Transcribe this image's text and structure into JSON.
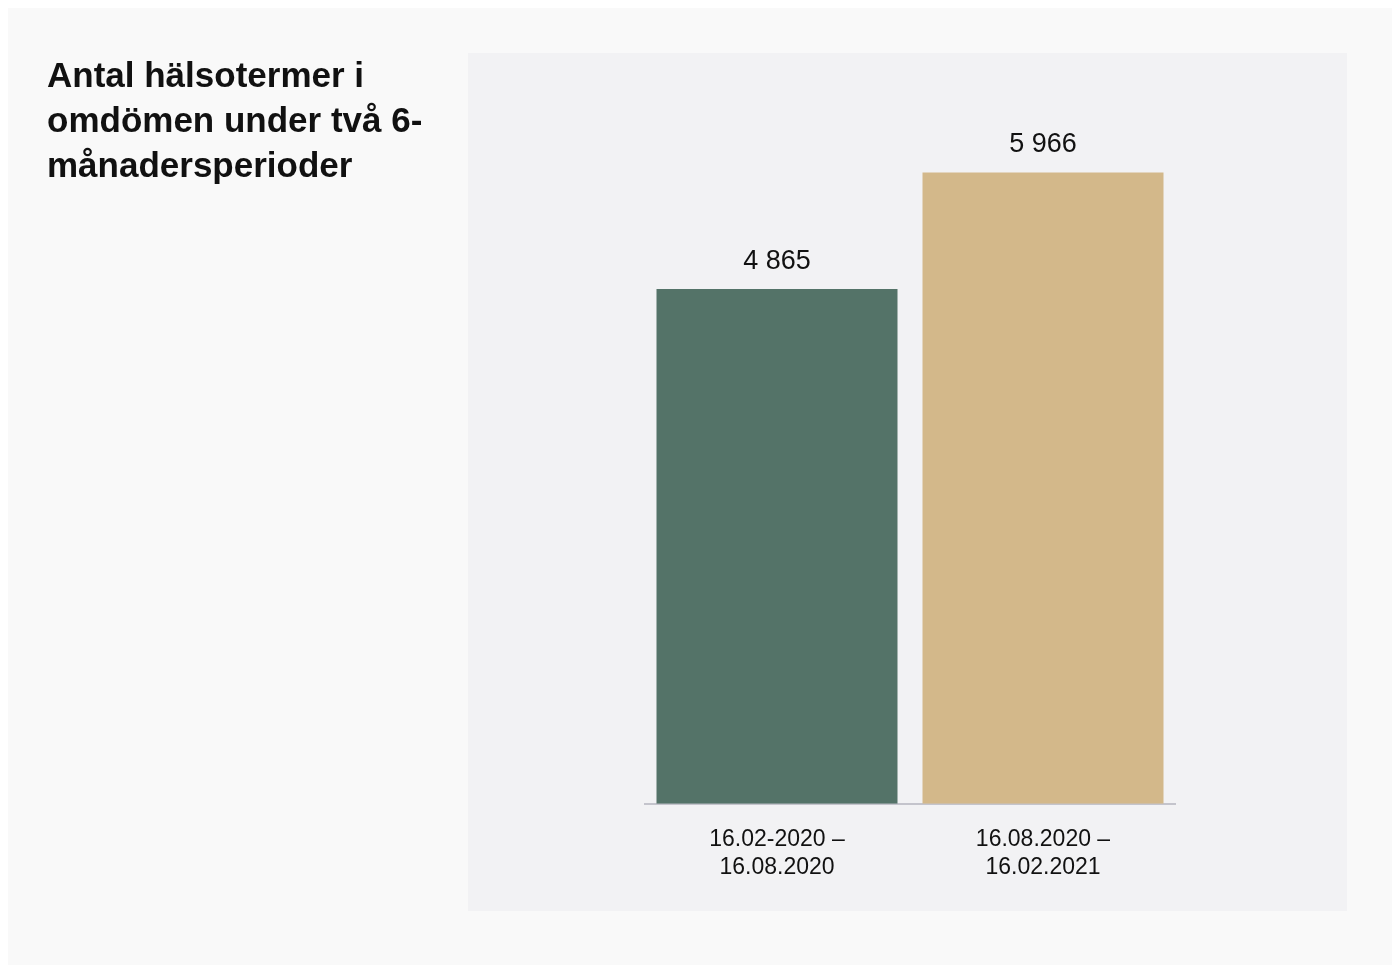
{
  "chart_data": {
    "type": "bar",
    "title": "Antal hälsotermer i omdömen under två 6-månadersperioder",
    "categories": [
      "16.02-2020 – 16.08.2020",
      "16.08.2020 – 16.02.2021"
    ],
    "values": [
      4865,
      5966
    ],
    "colors": [
      "#547368",
      "#d3b88a"
    ],
    "value_labels": [
      "4 865",
      "5 966"
    ],
    "grid": false,
    "legend": false
  }
}
